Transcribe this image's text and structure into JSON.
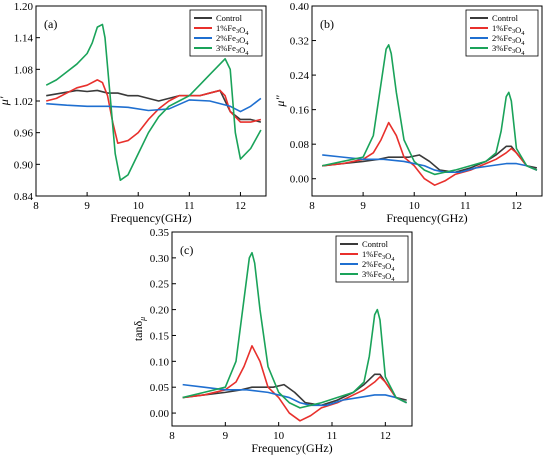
{
  "colors": {
    "Control": "#3a3a3a",
    "1%Fe3O4": "#e8302c",
    "2%Fe3O4": "#1f6fd0",
    "3%Fe3O4": "#1aa35a"
  },
  "chart_data": [
    {
      "type": "line",
      "panel_label": "(a)",
      "xlabel": "Frequency(GHz)",
      "ylabel": "μ'",
      "xlim": [
        8.0,
        12.5
      ],
      "ylim": [
        0.84,
        1.2
      ],
      "xticks": [
        "8",
        "9",
        "10",
        "11",
        "12"
      ],
      "yticks": [
        "0.84",
        "0.90",
        "0.96",
        "1.02",
        "1.08",
        "1.14",
        "1.20"
      ],
      "legend_position": "top-right",
      "series": [
        {
          "name": "Control",
          "x": [
            8.2,
            8.5,
            8.8,
            9.0,
            9.2,
            9.4,
            9.6,
            9.8,
            10.0,
            10.2,
            10.4,
            10.6,
            10.8,
            11.0,
            11.2,
            11.4,
            11.6,
            11.7,
            11.8,
            12.0,
            12.2,
            12.4
          ],
          "y": [
            1.03,
            1.035,
            1.04,
            1.038,
            1.04,
            1.035,
            1.035,
            1.03,
            1.03,
            1.025,
            1.02,
            1.025,
            1.03,
            1.03,
            1.03,
            1.035,
            1.04,
            1.02,
            1.0,
            0.985,
            0.985,
            0.98
          ]
        },
        {
          "name": "1%Fe3O4",
          "x": [
            8.2,
            8.4,
            8.6,
            8.8,
            9.0,
            9.2,
            9.3,
            9.4,
            9.5,
            9.6,
            9.8,
            10.0,
            10.2,
            10.4,
            10.6,
            10.8,
            11.0,
            11.2,
            11.4,
            11.6,
            11.7,
            11.8,
            12.0,
            12.2,
            12.4
          ],
          "y": [
            1.02,
            1.025,
            1.035,
            1.045,
            1.05,
            1.06,
            1.055,
            1.03,
            0.98,
            0.94,
            0.945,
            0.96,
            0.985,
            1.005,
            1.02,
            1.03,
            1.03,
            1.03,
            1.035,
            1.04,
            1.03,
            1.0,
            0.98,
            0.98,
            0.985
          ]
        },
        {
          "name": "2%Fe3O4",
          "x": [
            8.2,
            8.6,
            9.0,
            9.4,
            9.8,
            10.2,
            10.6,
            11.0,
            11.4,
            11.8,
            12.0,
            12.2,
            12.4
          ],
          "y": [
            1.015,
            1.012,
            1.01,
            1.01,
            1.008,
            1.002,
            1.005,
            1.022,
            1.02,
            1.01,
            1.0,
            1.01,
            1.025
          ]
        },
        {
          "name": "3%Fe3O4",
          "x": [
            8.2,
            8.4,
            8.6,
            8.8,
            9.0,
            9.1,
            9.2,
            9.3,
            9.35,
            9.45,
            9.55,
            9.65,
            9.8,
            10.0,
            10.2,
            10.4,
            10.6,
            10.8,
            11.0,
            11.2,
            11.4,
            11.6,
            11.7,
            11.8,
            11.9,
            12.0,
            12.2,
            12.4
          ],
          "y": [
            1.05,
            1.06,
            1.075,
            1.09,
            1.11,
            1.13,
            1.16,
            1.165,
            1.14,
            1.03,
            0.92,
            0.87,
            0.88,
            0.92,
            0.96,
            0.99,
            1.01,
            1.02,
            1.03,
            1.05,
            1.07,
            1.09,
            1.1,
            1.08,
            0.96,
            0.91,
            0.93,
            0.965
          ]
        }
      ]
    },
    {
      "type": "line",
      "panel_label": "(b)",
      "xlabel": "Frequency(GHz)",
      "ylabel": "μ''",
      "xlim": [
        8.0,
        12.5
      ],
      "ylim": [
        -0.04,
        0.4
      ],
      "xticks": [
        "8",
        "9",
        "10",
        "11",
        "12"
      ],
      "yticks": [
        "0.00",
        "0.08",
        "0.16",
        "0.24",
        "0.32",
        "0.40"
      ],
      "legend_position": "top-right",
      "series": [
        {
          "name": "Control",
          "x": [
            8.2,
            8.6,
            9.0,
            9.3,
            9.5,
            9.7,
            9.9,
            10.1,
            10.3,
            10.5,
            10.8,
            11.1,
            11.4,
            11.6,
            11.8,
            11.9,
            12.0,
            12.2,
            12.4
          ],
          "y": [
            0.03,
            0.035,
            0.04,
            0.045,
            0.05,
            0.05,
            0.05,
            0.055,
            0.04,
            0.02,
            0.015,
            0.025,
            0.04,
            0.055,
            0.075,
            0.075,
            0.06,
            0.03,
            0.025
          ]
        },
        {
          "name": "1%Fe3O4",
          "x": [
            8.2,
            8.6,
            9.0,
            9.2,
            9.35,
            9.5,
            9.65,
            9.8,
            10.0,
            10.2,
            10.4,
            10.6,
            10.8,
            11.1,
            11.4,
            11.6,
            11.8,
            11.9,
            12.0,
            12.2,
            12.4
          ],
          "y": [
            0.03,
            0.035,
            0.045,
            0.06,
            0.09,
            0.13,
            0.1,
            0.05,
            0.03,
            0.0,
            -0.015,
            -0.005,
            0.01,
            0.02,
            0.035,
            0.045,
            0.06,
            0.07,
            0.06,
            0.03,
            0.02
          ]
        },
        {
          "name": "2%Fe3O4",
          "x": [
            8.2,
            8.6,
            9.0,
            9.4,
            9.8,
            10.2,
            10.4,
            10.6,
            10.9,
            11.2,
            11.5,
            11.8,
            12.0,
            12.2,
            12.4
          ],
          "y": [
            0.055,
            0.05,
            0.045,
            0.045,
            0.04,
            0.03,
            0.02,
            0.015,
            0.015,
            0.025,
            0.03,
            0.035,
            0.035,
            0.03,
            0.02
          ]
        },
        {
          "name": "3%Fe3O4",
          "x": [
            8.2,
            8.6,
            9.0,
            9.2,
            9.35,
            9.45,
            9.5,
            9.55,
            9.65,
            9.8,
            10.0,
            10.2,
            10.4,
            10.6,
            10.8,
            11.1,
            11.4,
            11.6,
            11.7,
            11.8,
            11.85,
            11.9,
            12.0,
            12.2,
            12.4
          ],
          "y": [
            0.03,
            0.04,
            0.05,
            0.1,
            0.22,
            0.3,
            0.31,
            0.29,
            0.2,
            0.09,
            0.04,
            0.02,
            0.01,
            0.015,
            0.02,
            0.03,
            0.04,
            0.06,
            0.11,
            0.19,
            0.2,
            0.18,
            0.07,
            0.03,
            0.02
          ]
        }
      ]
    },
    {
      "type": "line",
      "panel_label": "(c)",
      "xlabel": "Frequency(GHz)",
      "ylabel": "tanδμ",
      "xlim": [
        8.0,
        12.5
      ],
      "ylim": [
        -0.025,
        0.35
      ],
      "xticks": [
        "8",
        "9",
        "10",
        "11",
        "12"
      ],
      "yticks": [
        "0.00",
        "0.05",
        "0.10",
        "0.15",
        "0.20",
        "0.25",
        "0.30",
        "0.35"
      ],
      "legend_position": "top-right",
      "series": [
        {
          "name": "Control",
          "x": [
            8.2,
            8.6,
            9.0,
            9.3,
            9.5,
            9.7,
            9.9,
            10.1,
            10.3,
            10.5,
            10.8,
            11.1,
            11.4,
            11.6,
            11.8,
            11.9,
            12.0,
            12.2,
            12.4
          ],
          "y": [
            0.03,
            0.035,
            0.04,
            0.045,
            0.05,
            0.05,
            0.05,
            0.055,
            0.04,
            0.02,
            0.015,
            0.025,
            0.04,
            0.055,
            0.075,
            0.075,
            0.06,
            0.03,
            0.025
          ]
        },
        {
          "name": "1%Fe3O4",
          "x": [
            8.2,
            8.6,
            9.0,
            9.2,
            9.35,
            9.5,
            9.65,
            9.8,
            10.0,
            10.2,
            10.4,
            10.6,
            10.8,
            11.1,
            11.4,
            11.6,
            11.8,
            11.9,
            12.0,
            12.2,
            12.4
          ],
          "y": [
            0.03,
            0.035,
            0.045,
            0.06,
            0.09,
            0.13,
            0.1,
            0.05,
            0.03,
            0.0,
            -0.015,
            -0.005,
            0.01,
            0.02,
            0.035,
            0.045,
            0.06,
            0.07,
            0.06,
            0.03,
            0.02
          ]
        },
        {
          "name": "2%Fe3O4",
          "x": [
            8.2,
            8.6,
            9.0,
            9.4,
            9.8,
            10.2,
            10.4,
            10.6,
            10.9,
            11.2,
            11.5,
            11.8,
            12.0,
            12.2,
            12.4
          ],
          "y": [
            0.055,
            0.05,
            0.045,
            0.045,
            0.04,
            0.03,
            0.02,
            0.015,
            0.015,
            0.025,
            0.03,
            0.035,
            0.035,
            0.03,
            0.02
          ]
        },
        {
          "name": "3%Fe3O4",
          "x": [
            8.2,
            8.6,
            9.0,
            9.2,
            9.35,
            9.45,
            9.5,
            9.55,
            9.65,
            9.8,
            10.0,
            10.2,
            10.4,
            10.6,
            10.8,
            11.1,
            11.4,
            11.6,
            11.7,
            11.8,
            11.85,
            11.9,
            12.0,
            12.2,
            12.4
          ],
          "y": [
            0.03,
            0.04,
            0.05,
            0.1,
            0.22,
            0.3,
            0.31,
            0.29,
            0.2,
            0.09,
            0.04,
            0.02,
            0.01,
            0.015,
            0.02,
            0.03,
            0.04,
            0.06,
            0.11,
            0.19,
            0.2,
            0.18,
            0.07,
            0.03,
            0.02
          ]
        }
      ]
    }
  ]
}
